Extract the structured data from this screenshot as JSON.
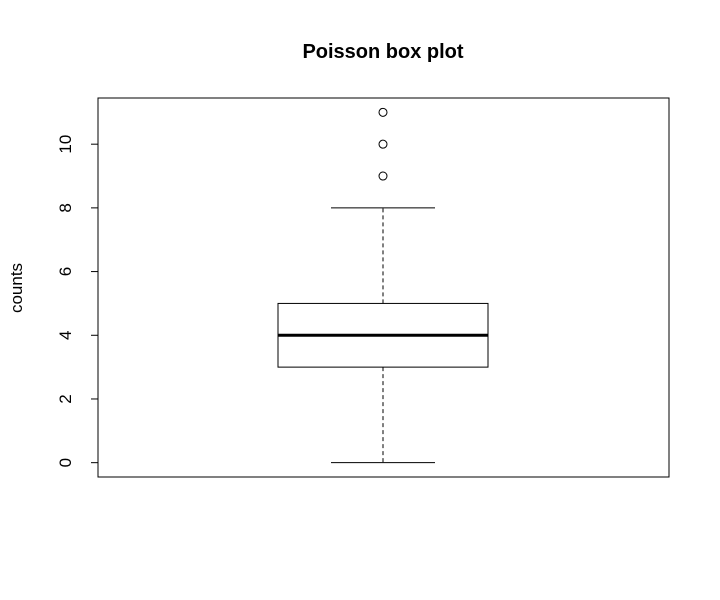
{
  "chart_data": {
    "type": "box",
    "title": "Poisson box plot",
    "xlabel": "",
    "ylabel": "counts",
    "ylim": [
      -0.45,
      11.45
    ],
    "yticks": [
      0,
      2,
      4,
      6,
      8,
      10
    ],
    "ytick_labels": [
      "0",
      "2",
      "4",
      "6",
      "8",
      "10"
    ],
    "grid": false,
    "legend": "none",
    "boxes": [
      {
        "whisker_low": 0,
        "q1": 3,
        "median": 4,
        "q3": 5,
        "whisker_high": 8,
        "outliers": [
          9,
          10,
          11
        ]
      }
    ]
  }
}
